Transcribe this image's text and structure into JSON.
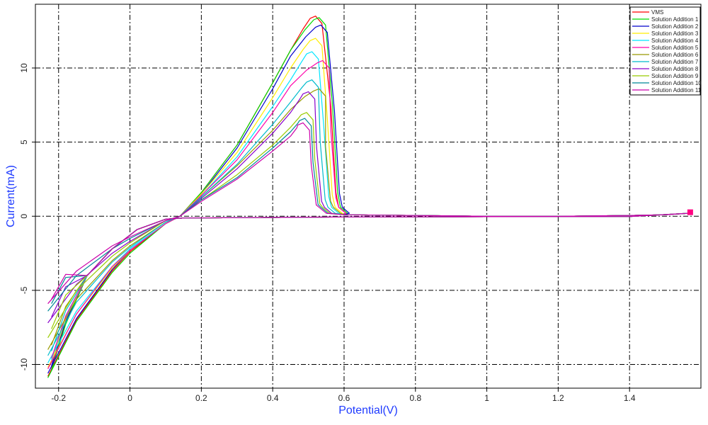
{
  "chart_data": {
    "type": "line",
    "title": "",
    "xlabel": "Potential(V)",
    "ylabel": "Current(mA)",
    "xlim": [
      -0.265,
      1.6
    ],
    "ylim": [
      -11.6,
      14.3
    ],
    "x_ticks": [
      -0.2,
      0,
      0.2,
      0.4,
      0.6,
      0.8,
      1,
      1.2,
      1.4
    ],
    "x_tick_labels": [
      "-0.2",
      "0",
      "0.2",
      "0.4",
      "0.6",
      "0.8",
      "1",
      "1.2",
      "1.4"
    ],
    "y_ticks": [
      -10,
      -5,
      0,
      5,
      10
    ],
    "y_tick_labels": [
      "-10",
      "-5",
      "0",
      "5",
      "10"
    ],
    "grid": true,
    "grid_style": "dash-dot",
    "legend_position": "top-right",
    "x_anchor": [
      -0.23,
      -0.15,
      -0.05,
      0.0,
      0.1,
      0.14,
      0.2,
      0.3,
      0.4,
      0.45
    ],
    "series": [
      {
        "name": "VMS",
        "color": "#ff0000",
        "peak_x": 0.52,
        "peak_y": 13.5,
        "end_x": 0.585,
        "anodic": [
          -10.8,
          -7.0,
          -3.7,
          -2.4,
          -0.5,
          0.0,
          1.6,
          4.8,
          9.0,
          11.2
        ],
        "cathodic_y0": -10.3
      },
      {
        "name": "Solution Addition 1",
        "color": "#00dd00",
        "peak_x": 0.53,
        "peak_y": 13.4,
        "end_x": 0.59,
        "anodic": [
          -10.9,
          -7.1,
          -3.8,
          -2.5,
          -0.5,
          0.0,
          1.6,
          4.8,
          9.0,
          11.2
        ],
        "cathodic_y0": -10.4
      },
      {
        "name": "Solution Addition 2",
        "color": "#0000cc",
        "peak_x": 0.535,
        "peak_y": 12.9,
        "end_x": 0.595,
        "anodic": [
          -10.6,
          -6.9,
          -3.6,
          -2.3,
          -0.5,
          0.0,
          1.5,
          4.6,
          8.6,
          10.8
        ],
        "cathodic_y0": -10.1
      },
      {
        "name": "Solution Addition 3",
        "color": "#ffee00",
        "peak_x": 0.52,
        "peak_y": 12.0,
        "end_x": 0.575,
        "anodic": [
          -10.2,
          -6.6,
          -3.5,
          -2.3,
          -0.5,
          0.0,
          1.5,
          4.3,
          8.0,
          10.0
        ],
        "cathodic_y0": -9.9
      },
      {
        "name": "Solution Addition 4",
        "color": "#00e5ff",
        "peak_x": 0.51,
        "peak_y": 11.1,
        "end_x": 0.565,
        "anodic": [
          -9.9,
          -6.4,
          -3.4,
          -2.2,
          -0.5,
          0.0,
          1.4,
          4.0,
          7.4,
          9.2
        ],
        "cathodic_y0": -9.7
      },
      {
        "name": "Solution Addition 5",
        "color": "#ff00aa",
        "peak_x": 0.54,
        "peak_y": 10.5,
        "end_x": 0.585,
        "anodic": [
          -10.3,
          -6.6,
          -3.4,
          -2.3,
          -0.5,
          0.0,
          1.4,
          3.8,
          7.0,
          8.8
        ],
        "cathodic_y0": -9.6
      },
      {
        "name": "Solution Addition 6",
        "color": "#999900",
        "peak_x": 0.53,
        "peak_y": 8.6,
        "end_x": 0.57,
        "anodic": [
          -9.0,
          -5.6,
          -3.0,
          -2.0,
          -0.4,
          0.0,
          1.3,
          3.4,
          5.8,
          7.2
        ],
        "cathodic_y0": -8.7
      },
      {
        "name": "Solution Addition 7",
        "color": "#00bbcc",
        "peak_x": 0.51,
        "peak_y": 9.2,
        "end_x": 0.555,
        "anodic": [
          -9.4,
          -5.8,
          -3.1,
          -2.1,
          -0.4,
          0.0,
          1.3,
          3.5,
          6.2,
          7.7
        ],
        "cathodic_y0": -9.1
      },
      {
        "name": "Solution Addition 8",
        "color": "#8800cc",
        "peak_x": 0.5,
        "peak_y": 8.4,
        "end_x": 0.545,
        "anodic": [
          -7.2,
          -4.6,
          -2.5,
          -1.7,
          -0.3,
          0.0,
          1.2,
          3.2,
          5.6,
          7.0
        ],
        "cathodic_y0": -6.8
      },
      {
        "name": "Solution Addition 9",
        "color": "#99cc00",
        "peak_x": 0.495,
        "peak_y": 7.0,
        "end_x": 0.54,
        "anodic": [
          -8.2,
          -5.0,
          -2.7,
          -1.8,
          -0.3,
          0.0,
          1.1,
          2.8,
          4.8,
          6.0
        ],
        "cathodic_y0": -7.6
      },
      {
        "name": "Solution Addition 10",
        "color": "#008899",
        "peak_x": 0.49,
        "peak_y": 6.6,
        "end_x": 0.535,
        "anodic": [
          -6.4,
          -4.0,
          -2.2,
          -1.5,
          -0.3,
          0.0,
          1.1,
          2.6,
          4.6,
          5.7
        ],
        "cathodic_y0": -5.9
      },
      {
        "name": "Solution Addition 11",
        "color": "#cc00aa",
        "peak_x": 0.485,
        "peak_y": 6.3,
        "end_x": 0.53,
        "anodic": [
          -5.9,
          -3.7,
          -2.0,
          -1.4,
          -0.3,
          0.0,
          1.0,
          2.5,
          4.4,
          5.4
        ],
        "cathodic_y0": -5.6
      }
    ],
    "tail": [
      [
        0.6,
        0.1
      ],
      [
        0.8,
        0.05
      ],
      [
        1.0,
        0.0
      ],
      [
        1.2,
        0.0
      ],
      [
        1.4,
        0.05
      ],
      [
        1.5,
        0.1
      ],
      [
        1.565,
        0.2
      ]
    ],
    "end_marker": {
      "x": 1.57,
      "y": 0.22,
      "color": "#ff0080"
    }
  }
}
